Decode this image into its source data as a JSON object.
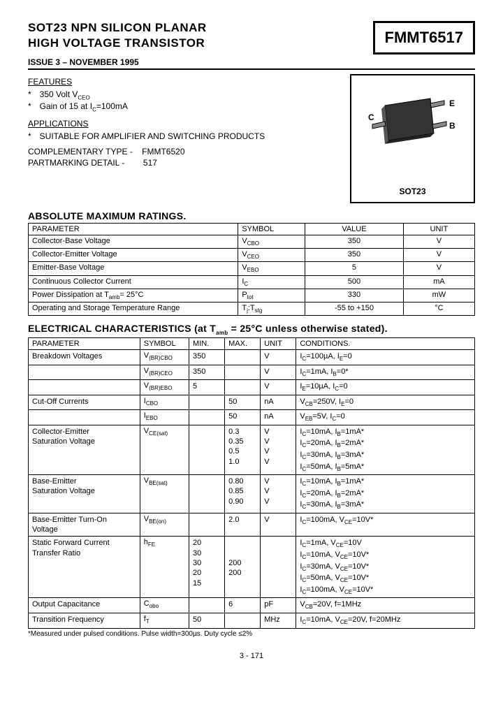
{
  "header": {
    "title1": "SOT23 NPN SILICON PLANAR",
    "title2": "HIGH VOLTAGE TRANSISTOR",
    "part": "FMMT6517",
    "issue": "ISSUE 3 – NOVEMBER 1995"
  },
  "features": {
    "label": "FEATURES",
    "items": [
      "350 Volt V",
      "Gain of 15 at I"
    ],
    "item0_sub": "CEO",
    "item1_sub": "C",
    "item1_tail": "=100mA"
  },
  "applications": {
    "label": "APPLICATIONS",
    "item": "SUITABLE FOR AMPLIFIER AND SWITCHING PRODUCTS"
  },
  "comp": {
    "label": "COMPLEMENTARY TYPE -",
    "value": "FMMT6520",
    "pm_label": "PARTMARKING DETAIL -",
    "pm_value": "517"
  },
  "pkg": {
    "label": "SOT23",
    "pinC": "C",
    "pinE": "E",
    "pinB": "B"
  },
  "amr": {
    "title": "ABSOLUTE MAXIMUM RATINGS.",
    "cols": [
      "PARAMETER",
      "SYMBOL",
      "VALUE",
      "UNIT"
    ],
    "rows": [
      {
        "p": "Collector-Base Voltage",
        "s": "V",
        "sub": "CBO",
        "v": "350",
        "u": "V"
      },
      {
        "p": "Collector-Emitter Voltage",
        "s": "V",
        "sub": "CEO",
        "v": "350",
        "u": "V"
      },
      {
        "p": "Emitter-Base Voltage",
        "s": "V",
        "sub": "EBO",
        "v": "5",
        "u": "V"
      },
      {
        "p": "Continuous Collector Current",
        "s": "I",
        "sub": "C",
        "v": "500",
        "u": "mA"
      },
      {
        "p": "Power Dissipation at T",
        "psub": "amb",
        "ptail": "= 25°C",
        "s": "P",
        "sub": "tot",
        "v": "330",
        "u": "mW"
      },
      {
        "p": "Operating and Storage Temperature Range",
        "s": "T",
        "sub": "j",
        "s2": ":T",
        "sub2": "stg",
        "v": "-55 to +150",
        "u": "°C"
      }
    ]
  },
  "elec": {
    "title": "ELECTRICAL CHARACTERISTICS (at T",
    "title_sub": "amb",
    "title_tail": " = 25°C unless otherwise stated).",
    "cols": [
      "PARAMETER",
      "SYMBOL",
      "MIN.",
      "MAX.",
      "UNIT",
      "CONDITIONS."
    ],
    "rows": [
      {
        "p": "Breakdown Voltages",
        "s": "V",
        "sub": "(BR)CBO",
        "min": "350",
        "max": "",
        "u": "V",
        "c": "I_C=100µA, I_E=0"
      },
      {
        "p": "",
        "s": "V",
        "sub": "(BR)CEO",
        "min": "350",
        "max": "",
        "u": "V",
        "c": "I_C=1mA, I_B=0*"
      },
      {
        "p": "",
        "s": "V",
        "sub": "(BR)EBO",
        "min": "5",
        "max": "",
        "u": "V",
        "c": "I_E=10µA, I_C=0"
      },
      {
        "p": "Cut-Off Currents",
        "s": "I",
        "sub": "CBO",
        "min": "",
        "max": "50",
        "u": "nA",
        "c": "V_CB=250V, I_E=0"
      },
      {
        "p": "",
        "s": "I",
        "sub": "EBO",
        "min": "",
        "max": "50",
        "u": "nA",
        "c": "V_EB=5V, I_C=0"
      },
      {
        "p": "Collector-Emitter\nSaturation Voltage",
        "s": "V",
        "sub": "CE(sat)",
        "min": "",
        "max": "0.3\n0.35\n0.5\n1.0",
        "u": "V\nV\nV\nV",
        "c": "I_C=10mA, I_B=1mA*\nI_C=20mA, I_B=2mA*\nI_C=30mA, I_B=3mA*\nI_C=50mA, I_B=5mA*"
      },
      {
        "p": "Base-Emitter\nSaturation Voltage",
        "s": "V",
        "sub": "BE(sat)",
        "min": "",
        "max": "0.80\n0.85\n0.90",
        "u": "V\nV\nV",
        "c": "I_C=10mA, I_B=1mA*\nI_C=20mA, I_B=2mA*\nI_C=30mA, I_B=3mA*"
      },
      {
        "p": "Base-Emitter Turn-On\nVoltage",
        "s": "V",
        "sub": "BE(on)",
        "min": "",
        "max": "2.0",
        "u": "V",
        "c": "I_C=100mA, V_CE=10V*"
      },
      {
        "p": "Static Forward Current\nTransfer Ratio",
        "s": "h",
        "sub": "FE",
        "min": "20\n30\n30\n20\n15",
        "max": "\n\n200\n200",
        "u": "",
        "c": "I_C=1mA, V_CE=10V\nI_C=10mA, V_CE=10V*\nI_C=30mA, V_CE=10V*\nI_C=50mA, V_CE=10V*\nI_C=100mA, V_CE=10V*"
      },
      {
        "p": "Output Capacitance",
        "s": "C",
        "sub": "obo",
        "min": "",
        "max": "6",
        "u": "pF",
        "c": "V_CB=20V, f=1MHz"
      },
      {
        "p": "Transition Frequency",
        "s": "f",
        "sub": "T",
        "min": "50",
        "max": "",
        "u": "MHz",
        "c": "I_C=10mA, V_CE=20V, f=20MHz"
      }
    ]
  },
  "footnote": "*Measured under pulsed conditions. Pulse width=300µs. Duty cycle ≤2%",
  "pagenum": "3 - 171"
}
